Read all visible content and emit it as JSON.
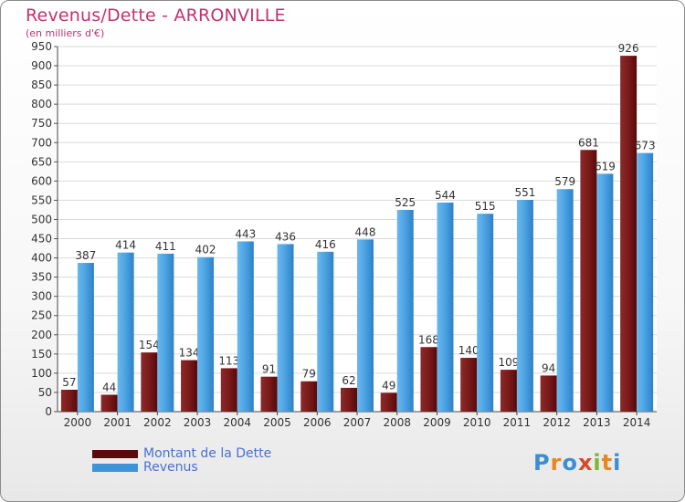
{
  "chart_data": {
    "type": "bar",
    "title": "Revenus/Dette - ARRONVILLE",
    "subtitle": "(en milliers d'€)",
    "categories": [
      "2000",
      "2001",
      "2002",
      "2003",
      "2004",
      "2005",
      "2006",
      "2007",
      "2008",
      "2009",
      "2010",
      "2011",
      "2012",
      "2013",
      "2014"
    ],
    "series": [
      {
        "name": "Montant de la Dette",
        "color": "#7a1a1a",
        "values": [
          57,
          44,
          154,
          134,
          113,
          91,
          79,
          62,
          49,
          168,
          140,
          109,
          94,
          681,
          926
        ]
      },
      {
        "name": "Revenus",
        "color": "#3e94d8",
        "values": [
          387,
          414,
          411,
          402,
          443,
          436,
          416,
          448,
          525,
          544,
          515,
          551,
          579,
          619,
          673
        ]
      }
    ],
    "ylim": [
      0,
      950
    ],
    "yticks": [
      0,
      50,
      100,
      150,
      200,
      250,
      300,
      350,
      400,
      450,
      500,
      550,
      600,
      650,
      700,
      750,
      800,
      850,
      900,
      950
    ],
    "grid": true,
    "legend": "bottom-left"
  },
  "logo": {
    "text": "Proxiti"
  }
}
